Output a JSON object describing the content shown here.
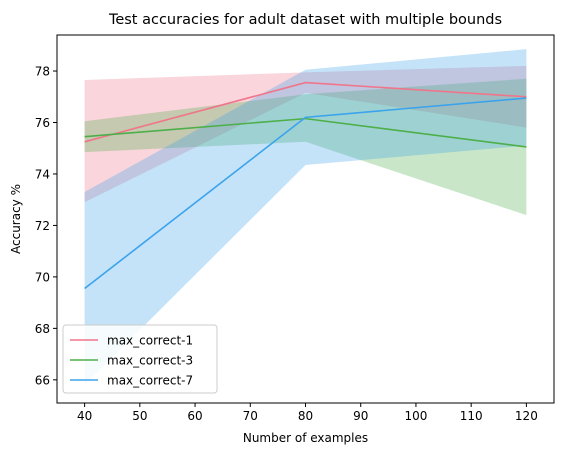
{
  "chart_data": {
    "type": "line",
    "title": "Test accuracies for adult dataset with multiple bounds",
    "xlabel": "Number of examples",
    "ylabel": "Accuracy %",
    "x": [
      40,
      80,
      120
    ],
    "xlim": [
      35,
      125
    ],
    "ylim": [
      65.1,
      79.4
    ],
    "xticks": [
      40,
      50,
      60,
      70,
      80,
      90,
      100,
      110,
      120
    ],
    "yticks": [
      66,
      68,
      70,
      72,
      74,
      76,
      78
    ],
    "grid": false,
    "legend_position": "lower-left",
    "series": [
      {
        "name": "max_correct-1",
        "color": "#f0758a",
        "values": [
          75.25,
          77.55,
          77.0
        ],
        "lower": [
          72.9,
          77.15,
          75.8
        ],
        "upper": [
          77.65,
          77.95,
          78.2
        ]
      },
      {
        "name": "max_correct-3",
        "color": "#4daf4a",
        "values": [
          75.45,
          76.15,
          75.05
        ],
        "lower": [
          74.85,
          75.25,
          72.4
        ],
        "upper": [
          76.05,
          77.1,
          77.7
        ]
      },
      {
        "name": "max_correct-7",
        "color": "#3ba3ec",
        "values": [
          69.55,
          76.2,
          76.95
        ],
        "lower": [
          65.8,
          74.35,
          75.1
        ],
        "upper": [
          73.3,
          78.05,
          78.85
        ]
      }
    ]
  }
}
